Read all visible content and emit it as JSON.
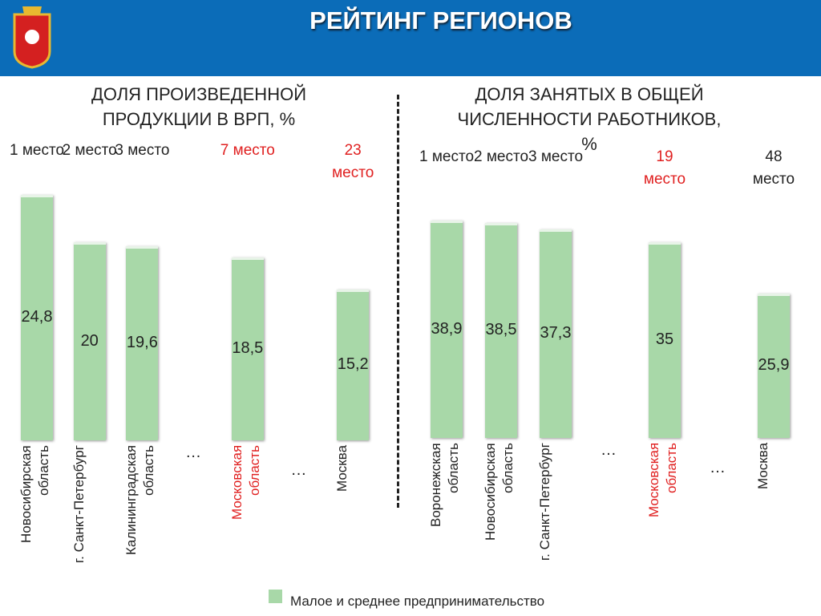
{
  "header": {
    "title": "РЕЙТИНГ РЕГИОНОВ"
  },
  "legend": {
    "label": "Малое и среднее предпринимательство",
    "color": "#a8d8a8"
  },
  "chart_data": [
    {
      "type": "bar",
      "title": "ДОЛЯ ПРОИЗВЕДЕННОЙ ПРОДУКЦИИ В ВРП, %",
      "categories": [
        "Новосибирская область",
        "г. Санкт-Петербург",
        "Калининградская область",
        "…",
        "Московская область",
        "…",
        "Москва"
      ],
      "ranks": [
        "1 место",
        "2 место",
        "3 место",
        null,
        "7 место",
        null,
        "23 место"
      ],
      "rank_colors": [
        "#222222",
        "#222222",
        "#222222",
        null,
        "#e02020",
        null,
        "#e02020"
      ],
      "category_colors": [
        "#222222",
        "#222222",
        "#222222",
        "#222222",
        "#e02020",
        "#222222",
        "#222222"
      ],
      "series": [
        {
          "name": "Малое и среднее предпринимательство",
          "color": "#a8d8a8",
          "values": [
            24.8,
            20,
            19.6,
            null,
            18.5,
            null,
            15.2
          ],
          "value_labels": [
            "24,8",
            "20",
            "19,6",
            null,
            "18,5",
            null,
            "15,2"
          ]
        }
      ]
    },
    {
      "type": "bar",
      "title": "ДОЛЯ ЗАНЯТЫХ В ОБЩЕЙ ЧИСЛЕННОСТИ РАБОТНИКОВ, %",
      "categories": [
        "Воронежская область",
        "Новосибирская область",
        "г. Санкт-Петербург",
        "…",
        "Московская область",
        "…",
        "Москва"
      ],
      "ranks": [
        "1 место",
        "2 место",
        "3 место",
        null,
        "19 место",
        null,
        "48 место"
      ],
      "rank_colors": [
        "#222222",
        "#222222",
        "#222222",
        null,
        "#e02020",
        null,
        "#222222"
      ],
      "category_colors": [
        "#222222",
        "#222222",
        "#222222",
        "#222222",
        "#e02020",
        "#222222",
        "#222222"
      ],
      "series": [
        {
          "name": "Малое и среднее предпринимательство",
          "color": "#a8d8a8",
          "values": [
            38.9,
            38.5,
            37.3,
            null,
            35,
            null,
            25.9
          ],
          "value_labels": [
            "38,9",
            "38,5",
            "37,3",
            null,
            "35",
            null,
            "25,9"
          ]
        }
      ]
    }
  ]
}
